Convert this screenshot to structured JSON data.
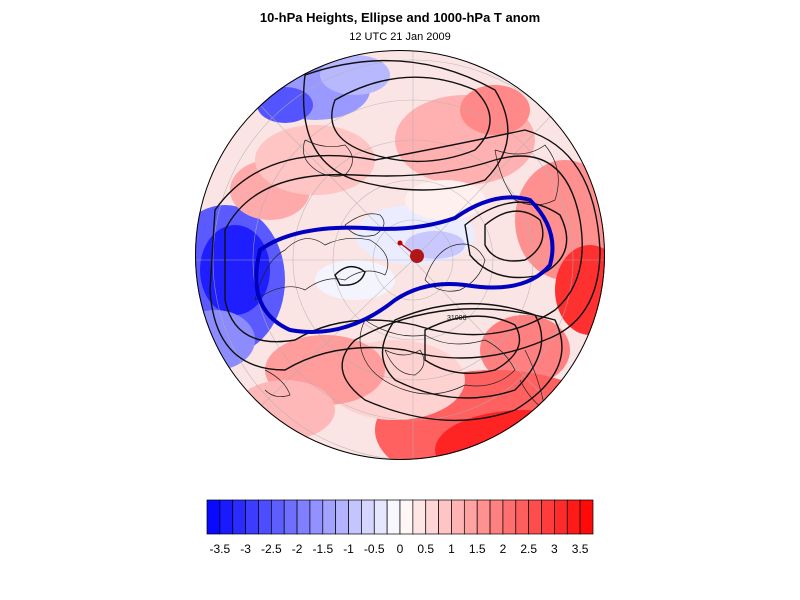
{
  "header": {
    "title": "10-hPa Heights, Ellipse and 1000-hPa T anom",
    "subtitle": "12 UTC 21 Jan 2009"
  },
  "map": {
    "projection": "north-polar-orthographic",
    "contour_label": "31000",
    "field": "1000-hPa temperature anomaly (shaded)",
    "overlay": "10-hPa height contours with fitted ellipse"
  },
  "colorbar": {
    "levels": [
      -3.75,
      -3.5,
      -3.25,
      -3,
      -2.75,
      -2.5,
      -2.25,
      -2,
      -1.75,
      -1.5,
      -1.25,
      -1,
      -0.75,
      -0.5,
      -0.25,
      0,
      0.25,
      0.5,
      0.75,
      1,
      1.25,
      1.5,
      1.75,
      2,
      2.25,
      2.5,
      2.75,
      3,
      3.25,
      3.5,
      3.75
    ],
    "tick_labels": [
      "-3.5",
      "-3",
      "-2.5",
      "-2",
      "-1.5",
      "-1",
      "-0.5",
      "0",
      "0.5",
      "1",
      "1.5",
      "2",
      "2.5",
      "3",
      "3.5"
    ],
    "negative_color": "#0000ff",
    "positive_color": "#ff0000",
    "neutral_color": "#ffffff"
  }
}
